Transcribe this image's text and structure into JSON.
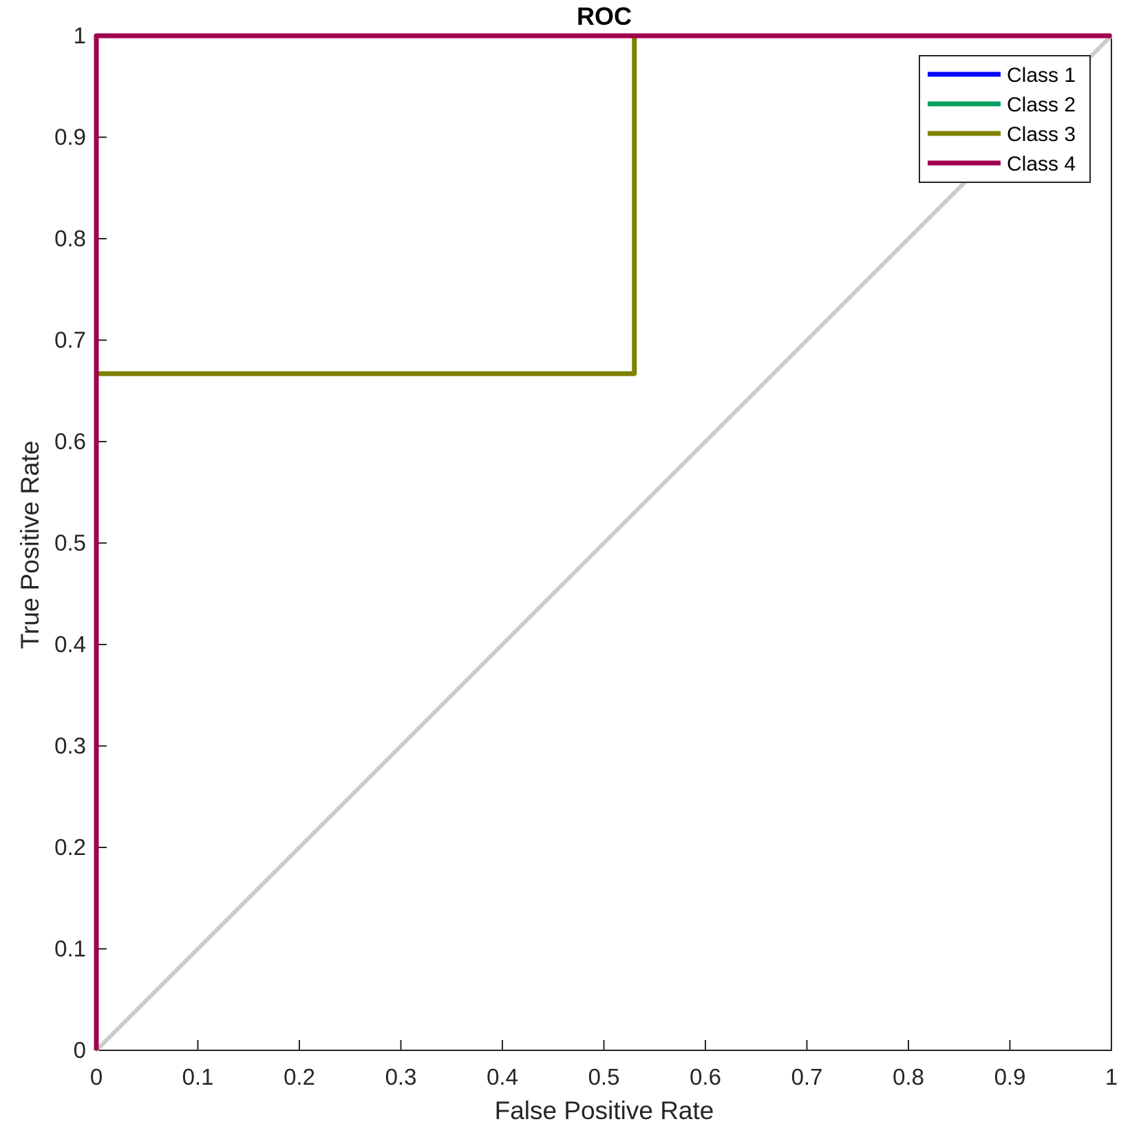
{
  "chart_data": {
    "type": "line",
    "title": "ROC",
    "xlabel": "False Positive Rate",
    "ylabel": "True Positive Rate",
    "xlim": [
      0,
      1
    ],
    "ylim": [
      0,
      1
    ],
    "xticks": [
      0,
      0.1,
      0.2,
      0.3,
      0.4,
      0.5,
      0.6,
      0.7,
      0.8,
      0.9,
      1
    ],
    "yticks": [
      0,
      0.1,
      0.2,
      0.3,
      0.4,
      0.5,
      0.6,
      0.7,
      0.8,
      0.9,
      1
    ],
    "xtick_labels": [
      "0",
      "0.1",
      "0.2",
      "0.3",
      "0.4",
      "0.5",
      "0.6",
      "0.7",
      "0.8",
      "0.9",
      "1"
    ],
    "ytick_labels": [
      "0",
      "0.1",
      "0.2",
      "0.3",
      "0.4",
      "0.5",
      "0.6",
      "0.7",
      "0.8",
      "0.9",
      "1"
    ],
    "grid": false,
    "legend_position": "top-right",
    "reference_line": {
      "x": [
        0,
        1
      ],
      "y": [
        0,
        1
      ],
      "color": "#cccccc"
    },
    "series": [
      {
        "name": "Class 1",
        "color": "#0000ff",
        "x": [
          0,
          0,
          1
        ],
        "y": [
          0,
          1,
          1
        ]
      },
      {
        "name": "Class 2",
        "color": "#00a060",
        "x": [
          0,
          0,
          1
        ],
        "y": [
          0,
          1,
          1
        ]
      },
      {
        "name": "Class 3",
        "color": "#808000",
        "x": [
          0,
          0,
          0.53,
          0.53,
          1
        ],
        "y": [
          0,
          0.667,
          0.667,
          1,
          1
        ]
      },
      {
        "name": "Class 4",
        "color": "#a0004e",
        "x": [
          0,
          0,
          1
        ],
        "y": [
          0,
          1,
          1
        ]
      }
    ]
  }
}
